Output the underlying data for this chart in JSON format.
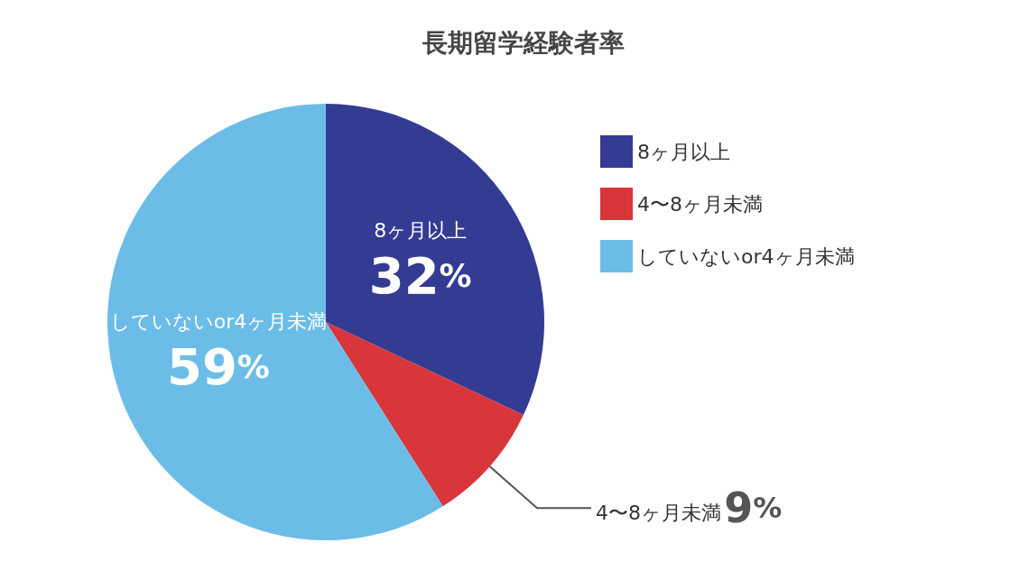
{
  "chart_data": {
    "type": "pie",
    "title": "長期留学経験者率",
    "categories": [
      "8ヶ月以上",
      "4〜8ヶ月未満",
      "していないor4ヶ月未満"
    ],
    "values": [
      32,
      9,
      59
    ],
    "colors": [
      "#343b93",
      "#d8363b",
      "#6bbde8"
    ],
    "value_labels": [
      "32%",
      "9%",
      "59%"
    ],
    "legend": "right"
  }
}
